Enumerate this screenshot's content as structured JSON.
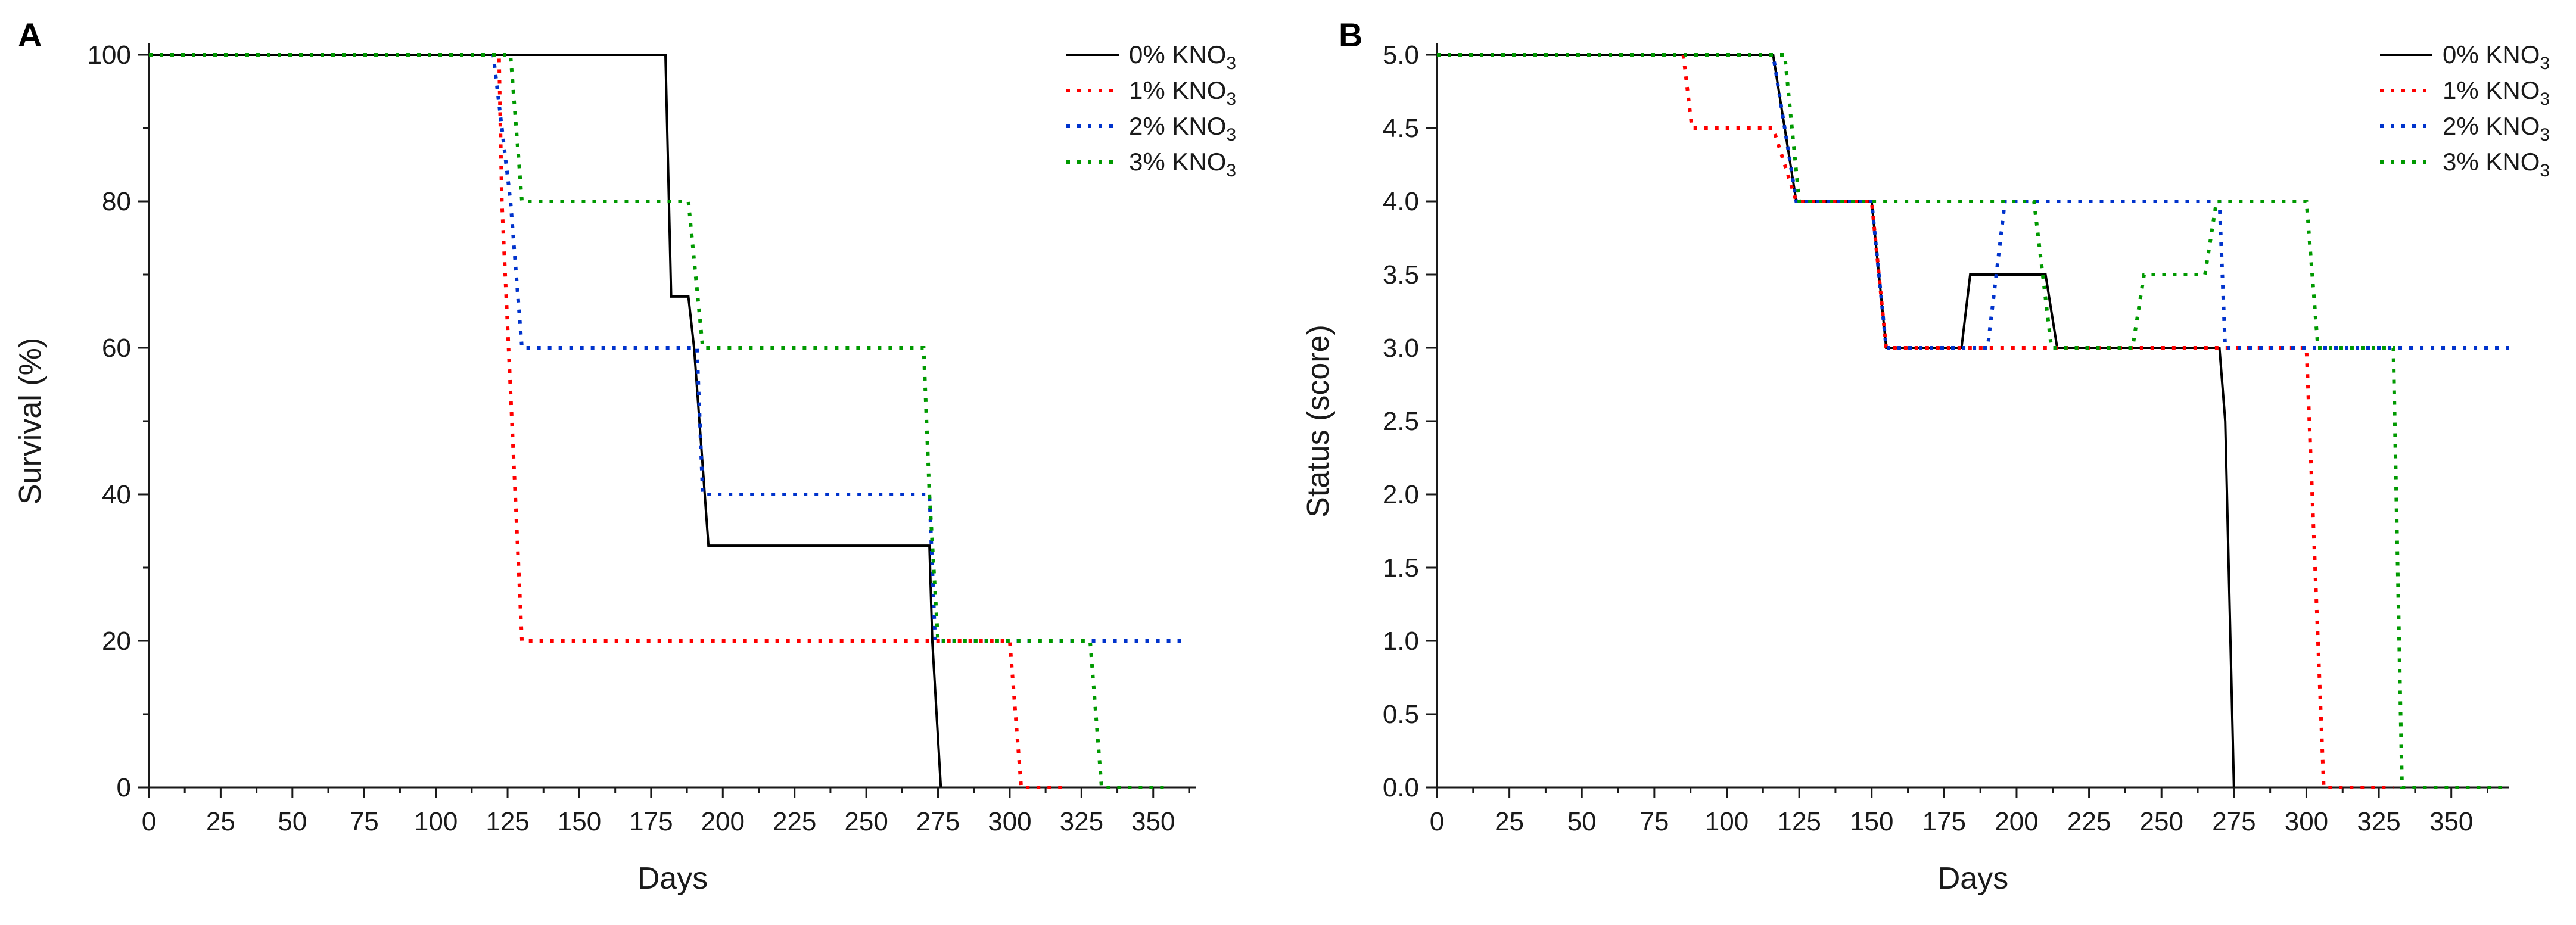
{
  "chart_data": [
    {
      "panel_label": "A",
      "type": "line",
      "xlabel": "Days",
      "ylabel": "Survival (%)",
      "xlim": [
        0,
        365
      ],
      "ylim": [
        0,
        100
      ],
      "xticks": [
        0,
        25,
        50,
        75,
        100,
        125,
        150,
        175,
        200,
        225,
        250,
        275,
        300,
        325,
        350
      ],
      "yticks": [
        0,
        20,
        40,
        60,
        80,
        100
      ],
      "legend_position": "top-right",
      "series": [
        {
          "name": "0% KNO3",
          "label_prefix": "0% KNO",
          "label_sub": "3",
          "color": "#000000",
          "style": "solid",
          "points": [
            [
              0,
              100
            ],
            [
              180,
              100
            ],
            [
              182,
              67
            ],
            [
              188,
              67
            ],
            [
              190,
              60
            ],
            [
              195,
              33
            ],
            [
              272,
              33
            ],
            [
              273,
              20
            ],
            [
              276,
              0
            ]
          ]
        },
        {
          "name": "1% KNO3",
          "label_prefix": "1% KNO",
          "label_sub": "3",
          "color": "#ff0000",
          "style": "dotted",
          "points": [
            [
              0,
              100
            ],
            [
              122,
              100
            ],
            [
              123,
              80
            ],
            [
              130,
              20
            ],
            [
              300,
              20
            ],
            [
              304,
              0
            ],
            [
              320,
              0
            ]
          ]
        },
        {
          "name": "2% KNO3",
          "label_prefix": "2% KNO",
          "label_sub": "3",
          "color": "#0033cc",
          "style": "dotted",
          "points": [
            [
              0,
              100
            ],
            [
              120,
              100
            ],
            [
              126,
              80
            ],
            [
              130,
              60
            ],
            [
              191,
              60
            ],
            [
              193,
              40
            ],
            [
              272,
              40
            ],
            [
              274,
              20
            ],
            [
              362,
              20
            ]
          ]
        },
        {
          "name": "3% KNO3",
          "label_prefix": "3% KNO",
          "label_sub": "3",
          "color": "#009900",
          "style": "dotted",
          "points": [
            [
              0,
              100
            ],
            [
              126,
              100
            ],
            [
              130,
              80
            ],
            [
              188,
              80
            ],
            [
              193,
              60
            ],
            [
              270,
              60
            ],
            [
              272,
              40
            ],
            [
              275,
              20
            ],
            [
              328,
              20
            ],
            [
              332,
              0
            ],
            [
              355,
              0
            ]
          ]
        }
      ]
    },
    {
      "panel_label": "B",
      "type": "line",
      "xlabel": "Days",
      "ylabel": "Status (score)",
      "xlim": [
        0,
        370
      ],
      "ylim": [
        0,
        5
      ],
      "xticks": [
        0,
        25,
        50,
        75,
        100,
        125,
        150,
        175,
        200,
        225,
        250,
        275,
        300,
        325,
        350
      ],
      "yticks": [
        0.0,
        0.5,
        1.0,
        1.5,
        2.0,
        2.5,
        3.0,
        3.5,
        4.0,
        4.5,
        5.0
      ],
      "ytick_labels": [
        "0.0",
        "0.5",
        "1.0",
        "1.5",
        "2.0",
        "2.5",
        "3.0",
        "3.5",
        "4.0",
        "4.5",
        "5.0"
      ],
      "legend_position": "top-right",
      "series": [
        {
          "name": "0% KNO3",
          "label_prefix": "0% KNO",
          "label_sub": "3",
          "color": "#000000",
          "style": "solid",
          "points": [
            [
              0,
              5
            ],
            [
              116,
              5
            ],
            [
              124,
              4
            ],
            [
              150,
              4
            ],
            [
              155,
              3
            ],
            [
              181,
              3
            ],
            [
              184,
              3.5
            ],
            [
              210,
              3.5
            ],
            [
              214,
              3
            ],
            [
              270,
              3
            ],
            [
              272,
              2.5
            ],
            [
              275,
              0
            ]
          ]
        },
        {
          "name": "1% KNO3",
          "label_prefix": "1% KNO",
          "label_sub": "3",
          "color": "#ff0000",
          "style": "dotted",
          "points": [
            [
              0,
              5
            ],
            [
              85,
              5
            ],
            [
              88,
              4.5
            ],
            [
              116,
              4.5
            ],
            [
              124,
              4
            ],
            [
              150,
              4
            ],
            [
              155,
              3
            ],
            [
              300,
              3
            ],
            [
              304,
              1
            ],
            [
              306,
              0
            ],
            [
              330,
              0
            ]
          ]
        },
        {
          "name": "2% KNO3",
          "label_prefix": "2% KNO",
          "label_sub": "3",
          "color": "#0033cc",
          "style": "dotted",
          "points": [
            [
              0,
              5
            ],
            [
              116,
              5
            ],
            [
              124,
              4
            ],
            [
              150,
              4
            ],
            [
              155,
              3
            ],
            [
              190,
              3
            ],
            [
              196,
              4
            ],
            [
              270,
              4
            ],
            [
              272,
              3
            ],
            [
              370,
              3
            ]
          ]
        },
        {
          "name": "3% KNO3",
          "label_prefix": "3% KNO",
          "label_sub": "3",
          "color": "#009900",
          "style": "dotted",
          "points": [
            [
              0,
              5
            ],
            [
              120,
              5
            ],
            [
              125,
              4
            ],
            [
              206,
              4
            ],
            [
              212,
              3
            ],
            [
              240,
              3
            ],
            [
              244,
              3.5
            ],
            [
              265,
              3.5
            ],
            [
              269,
              4
            ],
            [
              300,
              4
            ],
            [
              304,
              3
            ],
            [
              330,
              3
            ],
            [
              333,
              0
            ],
            [
              370,
              0
            ]
          ]
        }
      ]
    }
  ]
}
